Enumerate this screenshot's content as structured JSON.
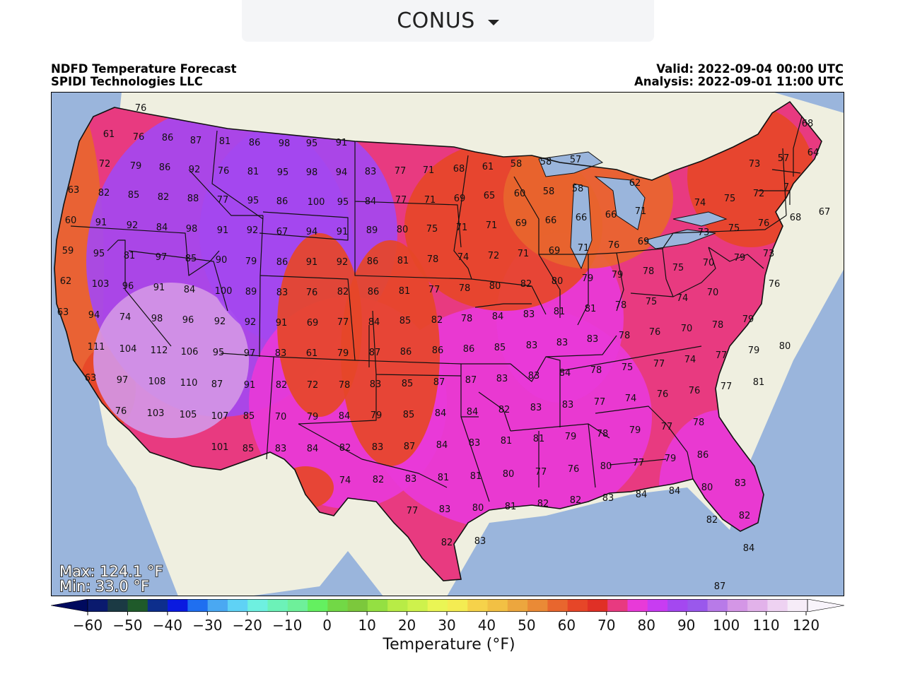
{
  "selector": {
    "value": "CONUS",
    "icon": "chevron-down-icon"
  },
  "header": {
    "title": "NDFD Temperature Forecast",
    "source": "SPIDI Technologies LLC",
    "valid": "Valid: 2022-09-04 00:00 UTC",
    "analysis": "Analysis: 2022-09-01 11:00 UTC"
  },
  "stats": {
    "max": "Max: 124.1 °F",
    "min": "Min: 33.0 °F"
  },
  "colorbar": {
    "label": "Temperature (°F)",
    "ticks": [
      "−60",
      "−50",
      "−40",
      "−30",
      "−20",
      "−10",
      "0",
      "10",
      "20",
      "30",
      "40",
      "50",
      "60",
      "70",
      "80",
      "90",
      "100",
      "110",
      "120"
    ],
    "colors": [
      "#0a1a6e",
      "#1b3a44",
      "#1f5a2a",
      "#0d2e8c",
      "#0a1ae0",
      "#1f6ff0",
      "#4aa8f2",
      "#5fd2f5",
      "#6ef0e0",
      "#6cf2b8",
      "#6ef09a",
      "#64f060",
      "#72d846",
      "#7cc83c",
      "#94e042",
      "#b8ec46",
      "#cef24c",
      "#eaf554",
      "#f4ec52",
      "#f6d24a",
      "#f2c044",
      "#eca63e",
      "#ea8a36",
      "#e8662e",
      "#e64628",
      "#e03026",
      "#e83a80",
      "#e83ad8",
      "#c83cf2",
      "#a448f0",
      "#9a58ec",
      "#b87ae8",
      "#d496e6",
      "#e2b2ea",
      "#eed2f2",
      "#f6ecf8"
    ],
    "under_color": "#000a5e",
    "over_color": "#f8f4fb"
  },
  "map_colors": {
    "ocean": "#9ab5dc",
    "land_outside": "#efefe0",
    "lakes": "#9ab5dc",
    "cool": "#e8662e",
    "warm": "#e64628",
    "hot": "#e83a80",
    "veryhot": "#e83ad8",
    "extreme": "#a448f0",
    "peak": "#d496e6"
  },
  "labels": [
    [
      "76",
      199,
      152
    ],
    [
      "61",
      154,
      189
    ],
    [
      "76",
      196,
      193
    ],
    [
      "86",
      237,
      194
    ],
    [
      "87",
      277,
      198
    ],
    [
      "81",
      318,
      199
    ],
    [
      "86",
      360,
      201
    ],
    [
      "98",
      402,
      202
    ],
    [
      "95",
      441,
      202
    ],
    [
      "91",
      483,
      201
    ],
    [
      "72",
      148,
      231
    ],
    [
      "79",
      192,
      234
    ],
    [
      "86",
      233,
      236
    ],
    [
      "92",
      275,
      239
    ],
    [
      "76",
      316,
      241
    ],
    [
      "81",
      358,
      242
    ],
    [
      "95",
      400,
      243
    ],
    [
      "98",
      441,
      243
    ],
    [
      "94",
      483,
      243
    ],
    [
      "83",
      524,
      242
    ],
    [
      "77",
      566,
      241
    ],
    [
      "71",
      606,
      240
    ],
    [
      "68",
      649,
      238
    ],
    [
      "61",
      690,
      235
    ],
    [
      "58",
      730,
      231
    ],
    [
      "58",
      772,
      228
    ],
    [
      "57",
      814,
      225
    ],
    [
      "57",
      1108,
      223
    ],
    [
      "68",
      1142,
      174
    ],
    [
      "64",
      1150,
      215
    ],
    [
      "73",
      1067,
      231
    ],
    [
      "63",
      104,
      268
    ],
    [
      "82",
      147,
      272
    ],
    [
      "85",
      189,
      275
    ],
    [
      "82",
      231,
      278
    ],
    [
      "88",
      273,
      280
    ],
    [
      "77",
      315,
      282
    ],
    [
      "95",
      358,
      283
    ],
    [
      "86",
      399,
      284
    ],
    [
      "100",
      447,
      285
    ],
    [
      "95",
      485,
      285
    ],
    [
      "84",
      524,
      284
    ],
    [
      "77",
      567,
      282
    ],
    [
      "71",
      608,
      282
    ],
    [
      "69",
      650,
      280
    ],
    [
      "65",
      692,
      276
    ],
    [
      "60",
      735,
      273
    ],
    [
      "58",
      776,
      270
    ],
    [
      "58",
      817,
      266
    ],
    [
      "62",
      898,
      258
    ],
    [
      "74",
      990,
      286
    ],
    [
      "75",
      1032,
      280
    ],
    [
      "72",
      1073,
      273
    ],
    [
      "7",
      1112,
      264
    ],
    [
      "60",
      100,
      311
    ],
    [
      "91",
      143,
      314
    ],
    [
      "92",
      187,
      318
    ],
    [
      "84",
      229,
      321
    ],
    [
      "98",
      271,
      323
    ],
    [
      "91",
      315,
      325
    ],
    [
      "92",
      357,
      325
    ],
    [
      "67",
      399,
      327
    ],
    [
      "94",
      441,
      327
    ],
    [
      "91",
      484,
      327
    ],
    [
      "89",
      526,
      325
    ],
    [
      "80",
      569,
      324
    ],
    [
      "75",
      611,
      323
    ],
    [
      "71",
      653,
      321
    ],
    [
      "71",
      695,
      318
    ],
    [
      "69",
      737,
      315
    ],
    [
      "66",
      779,
      311
    ],
    [
      "66",
      822,
      307
    ],
    [
      "66",
      864,
      303
    ],
    [
      "71",
      906,
      298
    ],
    [
      "73",
      995,
      328
    ],
    [
      "75",
      1038,
      322
    ],
    [
      "76",
      1080,
      315
    ],
    [
      "68",
      1125,
      307
    ],
    [
      "67",
      1166,
      299
    ],
    [
      "59",
      96,
      354
    ],
    [
      "95",
      140,
      358
    ],
    [
      "81",
      183,
      361
    ],
    [
      "97",
      228,
      363
    ],
    [
      "85",
      270,
      365
    ],
    [
      "90",
      313,
      367
    ],
    [
      "79",
      355,
      369
    ],
    [
      "86",
      399,
      370
    ],
    [
      "91",
      441,
      370
    ],
    [
      "92",
      484,
      370
    ],
    [
      "86",
      527,
      369
    ],
    [
      "81",
      570,
      368
    ],
    [
      "78",
      612,
      366
    ],
    [
      "74",
      655,
      363
    ],
    [
      "72",
      698,
      361
    ],
    [
      "71",
      740,
      358
    ],
    [
      "69",
      784,
      354
    ],
    [
      "71",
      825,
      350
    ],
    [
      "76",
      868,
      346
    ],
    [
      "69",
      910,
      341
    ],
    [
      "70",
      1002,
      371
    ],
    [
      "79",
      1046,
      364
    ],
    [
      "73",
      1087,
      358
    ],
    [
      "62",
      93,
      397
    ],
    [
      "103",
      142,
      401
    ],
    [
      "96",
      181,
      404
    ],
    [
      "91",
      225,
      406
    ],
    [
      "84",
      268,
      409
    ],
    [
      "100",
      316,
      411
    ],
    [
      "89",
      355,
      412
    ],
    [
      "83",
      399,
      413
    ],
    [
      "76",
      441,
      413
    ],
    [
      "82",
      485,
      412
    ],
    [
      "86",
      528,
      412
    ],
    [
      "81",
      572,
      411
    ],
    [
      "77",
      614,
      409
    ],
    [
      "78",
      657,
      407
    ],
    [
      "80",
      700,
      404
    ],
    [
      "82",
      744,
      401
    ],
    [
      "80",
      788,
      397
    ],
    [
      "79",
      831,
      393
    ],
    [
      "79",
      873,
      388
    ],
    [
      "78",
      917,
      383
    ],
    [
      "75",
      959,
      378
    ],
    [
      "70",
      1008,
      413
    ],
    [
      "76",
      1095,
      401
    ],
    [
      "63",
      89,
      441
    ],
    [
      "94",
      133,
      445
    ],
    [
      "74",
      177,
      448
    ],
    [
      "98",
      222,
      450
    ],
    [
      "96",
      266,
      452
    ],
    [
      "92",
      311,
      454
    ],
    [
      "92",
      354,
      455
    ],
    [
      "91",
      398,
      456
    ],
    [
      "69",
      442,
      456
    ],
    [
      "77",
      485,
      455
    ],
    [
      "84",
      529,
      455
    ],
    [
      "85",
      573,
      453
    ],
    [
      "82",
      618,
      452
    ],
    [
      "78",
      660,
      450
    ],
    [
      "84",
      704,
      447
    ],
    [
      "83",
      748,
      444
    ],
    [
      "81",
      791,
      440
    ],
    [
      "81",
      835,
      436
    ],
    [
      "78",
      878,
      431
    ],
    [
      "75",
      921,
      426
    ],
    [
      "74",
      965,
      421
    ],
    [
      "70",
      971,
      464
    ],
    [
      "78",
      1015,
      459
    ],
    [
      "79",
      1058,
      451
    ],
    [
      "111",
      136,
      490
    ],
    [
      "104",
      181,
      493
    ],
    [
      "112",
      225,
      495
    ],
    [
      "106",
      268,
      497
    ],
    [
      "95",
      309,
      498
    ],
    [
      "97",
      353,
      499
    ],
    [
      "83",
      397,
      499
    ],
    [
      "61",
      441,
      499
    ],
    [
      "79",
      485,
      499
    ],
    [
      "87",
      530,
      498
    ],
    [
      "86",
      574,
      497
    ],
    [
      "86",
      619,
      495
    ],
    [
      "86",
      663,
      493
    ],
    [
      "85",
      707,
      491
    ],
    [
      "83",
      752,
      488
    ],
    [
      "83",
      795,
      484
    ],
    [
      "83",
      838,
      479
    ],
    [
      "78",
      883,
      474
    ],
    [
      "76",
      926,
      469
    ],
    [
      "80",
      1110,
      489
    ],
    [
      "79",
      1066,
      495
    ],
    [
      "63",
      128,
      534
    ],
    [
      "97",
      173,
      537
    ],
    [
      "108",
      222,
      539
    ],
    [
      "110",
      267,
      541
    ],
    [
      "87",
      307,
      543
    ],
    [
      "91",
      353,
      544
    ],
    [
      "82",
      398,
      544
    ],
    [
      "72",
      442,
      544
    ],
    [
      "78",
      487,
      544
    ],
    [
      "83",
      531,
      543
    ],
    [
      "85",
      576,
      542
    ],
    [
      "87",
      621,
      540
    ],
    [
      "87",
      666,
      537
    ],
    [
      "83",
      710,
      535
    ],
    [
      "83",
      755,
      531
    ],
    [
      "84",
      799,
      527
    ],
    [
      "78",
      843,
      523
    ],
    [
      "75",
      887,
      519
    ],
    [
      "77",
      932,
      514
    ],
    [
      "74",
      976,
      508
    ],
    [
      "77",
      1020,
      502
    ],
    [
      "81",
      1073,
      540
    ],
    [
      "76",
      171,
      581
    ],
    [
      "103",
      220,
      584
    ],
    [
      "105",
      266,
      586
    ],
    [
      "107",
      311,
      588
    ],
    [
      "85",
      352,
      588
    ],
    [
      "70",
      397,
      589
    ],
    [
      "79",
      442,
      589
    ],
    [
      "84",
      487,
      588
    ],
    [
      "79",
      532,
      587
    ],
    [
      "85",
      578,
      586
    ],
    [
      "84",
      623,
      584
    ],
    [
      "84",
      668,
      582
    ],
    [
      "82",
      713,
      579
    ],
    [
      "83",
      758,
      576
    ],
    [
      "83",
      803,
      572
    ],
    [
      "77",
      848,
      568
    ],
    [
      "74",
      892,
      563
    ],
    [
      "76",
      937,
      557
    ],
    [
      "76",
      982,
      552
    ],
    [
      "77",
      1027,
      546
    ],
    [
      "101",
      311,
      632
    ],
    [
      "85",
      351,
      634
    ],
    [
      "83",
      397,
      634
    ],
    [
      "84",
      442,
      634
    ],
    [
      "82",
      488,
      633
    ],
    [
      "83",
      534,
      632
    ],
    [
      "87",
      579,
      631
    ],
    [
      "84",
      625,
      629
    ],
    [
      "83",
      671,
      626
    ],
    [
      "81",
      716,
      623
    ],
    [
      "81",
      762,
      620
    ],
    [
      "79",
      807,
      617
    ],
    [
      "78",
      852,
      613
    ],
    [
      "79",
      898,
      608
    ],
    [
      "77",
      943,
      603
    ],
    [
      "78",
      988,
      597
    ],
    [
      "74",
      488,
      679
    ],
    [
      "82",
      535,
      678
    ],
    [
      "83",
      581,
      677
    ],
    [
      "81",
      627,
      675
    ],
    [
      "81",
      673,
      673
    ],
    [
      "80",
      719,
      670
    ],
    [
      "77",
      765,
      667
    ],
    [
      "76",
      811,
      663
    ],
    [
      "80",
      857,
      659
    ],
    [
      "77",
      903,
      654
    ],
    [
      "79",
      948,
      648
    ],
    [
      "86",
      994,
      643
    ],
    [
      "77",
      583,
      722
    ],
    [
      "83",
      629,
      720
    ],
    [
      "80",
      676,
      718
    ],
    [
      "81",
      722,
      716
    ],
    [
      "82",
      768,
      712
    ],
    [
      "82",
      814,
      707
    ],
    [
      "83",
      860,
      704
    ],
    [
      "84",
      907,
      699
    ],
    [
      "84",
      954,
      694
    ],
    [
      "80",
      1000,
      689
    ],
    [
      "83",
      1047,
      683
    ],
    [
      "82",
      632,
      767
    ],
    [
      "83",
      679,
      765
    ],
    [
      "82",
      1007,
      735
    ],
    [
      "82",
      1053,
      729
    ],
    [
      "84",
      1059,
      775
    ],
    [
      "87",
      1018,
      829
    ]
  ]
}
